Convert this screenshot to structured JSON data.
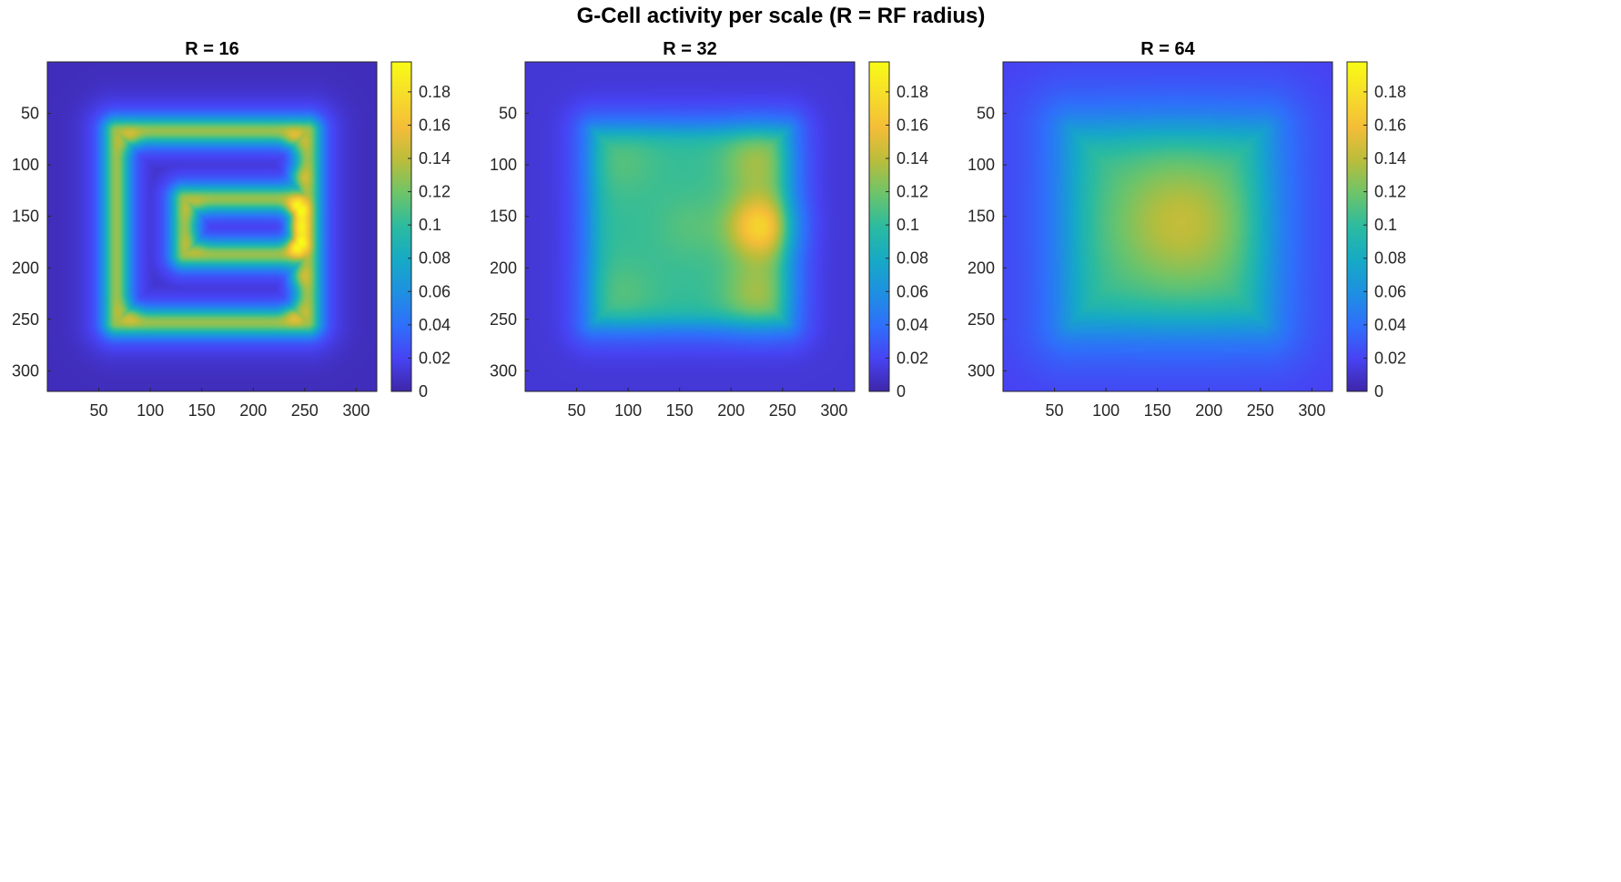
{
  "figure": {
    "title": "G-Cell activity per scale (R = RF radius)"
  },
  "colormap": [
    "#3e26a8",
    "#4743f3",
    "#2f6ffb",
    "#1e90e1",
    "#16aac5",
    "#2bbba0",
    "#6cc46a",
    "#b9bd3b",
    "#f4bd38",
    "#f6dd2a",
    "#f9fb15"
  ],
  "chart_data": [
    {
      "type": "heatmap",
      "title": "R = 16",
      "R": 16,
      "xlim": [
        0,
        320
      ],
      "ylim": [
        320,
        0
      ],
      "xticks": [
        50,
        100,
        150,
        200,
        250,
        300
      ],
      "yticks": [
        50,
        100,
        150,
        200,
        250,
        300
      ],
      "clim": [
        0,
        0.198
      ],
      "colorbar_ticks": [
        0,
        0.02,
        0.04,
        0.06,
        0.08,
        0.1,
        0.12,
        0.14,
        0.16,
        0.18
      ],
      "background": 0.005,
      "halo": 0.03,
      "stroke_value": 0.095,
      "strokes": [
        {
          "x1": 67,
          "y1": 67,
          "x2": 253,
          "y2": 67
        },
        {
          "x1": 67,
          "y1": 253,
          "x2": 253,
          "y2": 253
        },
        {
          "x1": 67,
          "y1": 67,
          "x2": 67,
          "y2": 253
        },
        {
          "x1": 253,
          "y1": 67,
          "x2": 253,
          "y2": 253
        },
        {
          "x1": 133,
          "y1": 133,
          "x2": 253,
          "y2": 133
        },
        {
          "x1": 133,
          "y1": 187,
          "x2": 253,
          "y2": 187
        },
        {
          "x1": 133,
          "y1": 133,
          "x2": 133,
          "y2": 187
        }
      ],
      "hotspots": [
        {
          "x": 80,
          "y": 77,
          "value": 0.13
        },
        {
          "x": 240,
          "y": 77,
          "value": 0.14
        },
        {
          "x": 80,
          "y": 243,
          "value": 0.13
        },
        {
          "x": 240,
          "y": 243,
          "value": 0.14
        },
        {
          "x": 143,
          "y": 143,
          "value": 0.115
        },
        {
          "x": 143,
          "y": 177,
          "value": 0.115
        },
        {
          "x": 243,
          "y": 143,
          "value": 0.195
        },
        {
          "x": 243,
          "y": 177,
          "value": 0.195
        },
        {
          "x": 243,
          "y": 160,
          "value": 0.18
        },
        {
          "x": 243,
          "y": 112,
          "value": 0.13
        },
        {
          "x": 243,
          "y": 208,
          "value": 0.13
        }
      ]
    },
    {
      "type": "heatmap",
      "title": "R = 32",
      "R": 32,
      "xlim": [
        0,
        320
      ],
      "ylim": [
        320,
        0
      ],
      "xticks": [
        50,
        100,
        150,
        200,
        250,
        300
      ],
      "yticks": [
        50,
        100,
        150,
        200,
        250,
        300
      ],
      "clim": [
        0,
        0.198
      ],
      "colorbar_ticks": [
        0,
        0.02,
        0.04,
        0.06,
        0.08,
        0.1,
        0.12,
        0.14,
        0.16,
        0.18
      ],
      "background": 0.012,
      "halo": 0.025,
      "region": {
        "x1": 67,
        "y1": 67,
        "x2": 253,
        "y2": 253,
        "value": 0.065
      },
      "hotspots": [
        {
          "x": 95,
          "y": 97,
          "value": 0.075
        },
        {
          "x": 95,
          "y": 225,
          "value": 0.075
        },
        {
          "x": 225,
          "y": 97,
          "value": 0.095
        },
        {
          "x": 225,
          "y": 225,
          "value": 0.095
        },
        {
          "x": 228,
          "y": 160,
          "value": 0.135
        },
        {
          "x": 160,
          "y": 160,
          "value": 0.075
        }
      ]
    },
    {
      "type": "heatmap",
      "title": "R = 64",
      "R": 64,
      "xlim": [
        0,
        320
      ],
      "ylim": [
        320,
        0
      ],
      "xticks": [
        50,
        100,
        150,
        200,
        250,
        300
      ],
      "yticks": [
        50,
        100,
        150,
        200,
        250,
        300
      ],
      "clim": [
        0,
        0.198
      ],
      "colorbar_ticks": [
        0,
        0.02,
        0.04,
        0.06,
        0.08,
        0.1,
        0.12,
        0.14,
        0.16,
        0.18
      ],
      "background": 0.018,
      "halo": 0.02,
      "region": {
        "x1": 67,
        "y1": 67,
        "x2": 253,
        "y2": 253,
        "value": 0.065
      },
      "hotspots": [
        {
          "x": 180,
          "y": 160,
          "value": 0.09
        },
        {
          "x": 160,
          "y": 150,
          "value": 0.08
        }
      ]
    }
  ]
}
